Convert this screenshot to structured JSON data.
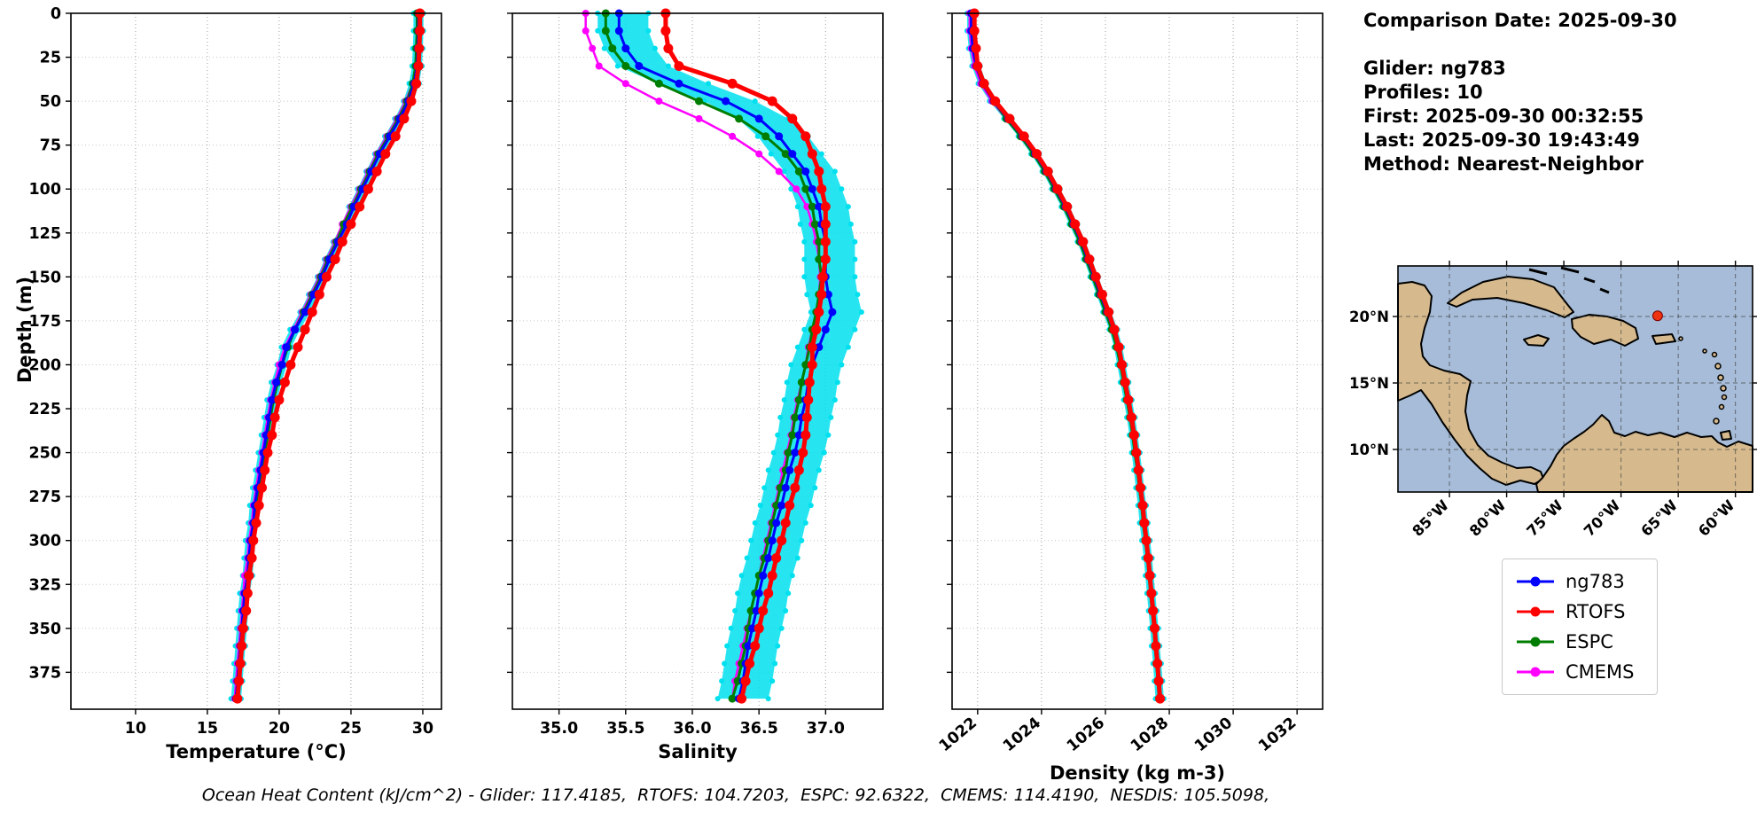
{
  "info": {
    "title": "Comparison Date: 2025-09-30",
    "lines": [
      "Glider: ng783",
      "Profiles: 10",
      "First: 2025-09-30 00:32:55",
      "Last: 2025-09-30 19:43:49",
      "Method: Nearest-Neighbor"
    ]
  },
  "legend": {
    "items": [
      {
        "label": "ng783",
        "color": "#0000ff"
      },
      {
        "label": "RTOFS",
        "color": "#ff0000"
      },
      {
        "label": "ESPC",
        "color": "#007d00"
      },
      {
        "label": "CMEMS",
        "color": "#ff00ff"
      }
    ]
  },
  "footer": {
    "text": "Ocean Heat Content (kJ/cm^2) - Glider: 117.4185,  RTOFS: 104.7203,  ESPC: 92.6322,  CMEMS: 114.4190,  NESDIS: 105.5098,"
  },
  "map": {
    "extent": {
      "lon_min": -89.5,
      "lon_max": -58.5,
      "lat_min": 6.8,
      "lat_max": 23.8
    },
    "lat_ticks": [
      {
        "label": "20°N",
        "value": 20
      },
      {
        "label": "15°N",
        "value": 15
      },
      {
        "label": "10°N",
        "value": 10
      }
    ],
    "lon_ticks": [
      {
        "label": "85°W",
        "value": -85
      },
      {
        "label": "80°W",
        "value": -80
      },
      {
        "label": "75°W",
        "value": -75
      },
      {
        "label": "70°W",
        "value": -70
      },
      {
        "label": "65°W",
        "value": -65
      },
      {
        "label": "60°W",
        "value": -60
      }
    ],
    "glider_dot": {
      "lon": -66.8,
      "lat": 20.05,
      "color": "#ee3311"
    },
    "ocean_color": "#a6bcd8",
    "land_color": "#d6ba8e"
  },
  "chart_data": [
    {
      "type": "line",
      "xlabel": "Temperature (°C)",
      "ylabel": "Depth (m)",
      "xlim": [
        5.5,
        31.3
      ],
      "ylim": [
        0,
        396
      ],
      "xticks": [
        10,
        15,
        20,
        25,
        30
      ],
      "xtick_labels": [
        "10",
        "15",
        "20",
        "25",
        "30"
      ],
      "yticks": [
        0,
        25,
        50,
        75,
        100,
        125,
        150,
        175,
        200,
        225,
        250,
        275,
        300,
        325,
        350,
        375
      ],
      "rotate_xticks": false,
      "show_ytick_labels": true,
      "grid": "dotted",
      "depths": [
        0,
        10,
        20,
        30,
        40,
        50,
        60,
        70,
        80,
        90,
        100,
        110,
        120,
        130,
        140,
        150,
        160,
        170,
        180,
        190,
        200,
        210,
        220,
        230,
        240,
        250,
        260,
        270,
        280,
        290,
        300,
        310,
        320,
        330,
        340,
        350,
        360,
        370,
        380,
        390
      ],
      "band": {
        "name": "glider-raw-envelope",
        "reference": "ng783",
        "color": "#00e0ee",
        "below": 0.35,
        "above": 0.35
      },
      "draw_order": [
        "CMEMS",
        "ESPC",
        "ng783",
        "RTOFS"
      ],
      "series": [
        {
          "name": "ng783",
          "color": "#0000ff",
          "line_width": 3,
          "marker_radius": 4.5,
          "values": [
            29.7,
            29.7,
            29.65,
            29.6,
            29.4,
            29.0,
            28.4,
            27.7,
            27.0,
            26.4,
            25.8,
            25.2,
            24.7,
            24.1,
            23.5,
            23.0,
            22.4,
            21.8,
            21.1,
            20.5,
            20.2,
            19.8,
            19.5,
            19.3,
            19.1,
            18.9,
            18.7,
            18.5,
            18.3,
            18.2,
            18.0,
            17.9,
            17.8,
            17.6,
            17.5,
            17.4,
            17.3,
            17.2,
            17.1,
            17.0
          ]
        },
        {
          "name": "RTOFS",
          "color": "#ff0000",
          "line_width": 5,
          "marker_radius": 5.5,
          "values": [
            29.8,
            29.8,
            29.75,
            29.7,
            29.55,
            29.2,
            28.7,
            28.1,
            27.4,
            26.8,
            26.2,
            25.6,
            25.0,
            24.4,
            23.9,
            23.3,
            22.8,
            22.3,
            21.8,
            21.3,
            20.8,
            20.4,
            20.0,
            19.7,
            19.5,
            19.2,
            19.0,
            18.8,
            18.6,
            18.4,
            18.2,
            18.1,
            17.9,
            17.8,
            17.7,
            17.5,
            17.4,
            17.3,
            17.2,
            17.1
          ]
        },
        {
          "name": "ESPC",
          "color": "#007d00",
          "line_width": 3,
          "marker_radius": 4.5,
          "values": [
            29.6,
            29.6,
            29.55,
            29.5,
            29.3,
            28.9,
            28.3,
            27.6,
            26.9,
            26.3,
            25.7,
            25.1,
            24.5,
            24.0,
            23.4,
            22.9,
            22.3,
            21.7,
            21.1,
            20.6,
            20.2,
            19.9,
            19.6,
            19.4,
            19.2,
            19.0,
            18.8,
            18.6,
            18.4,
            18.2,
            18.1,
            17.9,
            17.8,
            17.7,
            17.5,
            17.4,
            17.3,
            17.2,
            17.1,
            17.0
          ]
        },
        {
          "name": "CMEMS",
          "color": "#ff00ff",
          "line_width": 2.5,
          "marker_radius": 4,
          "values": [
            29.7,
            29.7,
            29.6,
            29.5,
            29.3,
            28.8,
            28.2,
            27.5,
            26.8,
            26.2,
            25.6,
            25.0,
            24.4,
            23.9,
            23.3,
            22.8,
            22.2,
            21.6,
            21.0,
            20.4,
            20.0,
            19.7,
            19.4,
            19.2,
            19.0,
            18.8,
            18.6,
            18.4,
            18.2,
            18.1,
            17.9,
            17.8,
            17.6,
            17.5,
            17.4,
            17.3,
            17.2,
            17.1,
            17.0,
            16.9
          ]
        }
      ]
    },
    {
      "type": "line",
      "xlabel": "Salinity",
      "ylabel": "Depth (m)",
      "xlim": [
        34.65,
        37.43
      ],
      "ylim": [
        0,
        396
      ],
      "xticks": [
        35.0,
        35.5,
        36.0,
        36.5,
        37.0
      ],
      "xtick_labels": [
        "35.0",
        "35.5",
        "36.0",
        "36.5",
        "37.0"
      ],
      "yticks": [
        0,
        25,
        50,
        75,
        100,
        125,
        150,
        175,
        200,
        225,
        250,
        275,
        300,
        325,
        350,
        375
      ],
      "rotate_xticks": false,
      "show_ytick_labels": false,
      "grid": "dotted",
      "depths": [
        0,
        10,
        20,
        30,
        40,
        50,
        60,
        70,
        80,
        90,
        100,
        110,
        120,
        130,
        140,
        150,
        160,
        170,
        180,
        190,
        200,
        210,
        220,
        230,
        240,
        250,
        260,
        270,
        280,
        290,
        300,
        310,
        320,
        330,
        340,
        350,
        360,
        370,
        380,
        390
      ],
      "band": {
        "name": "glider-raw-envelope",
        "reference": "ng783",
        "color": "#00e0ee",
        "below": 0.16,
        "above": 0.22
      },
      "draw_order": [
        "CMEMS",
        "ESPC",
        "ng783",
        "RTOFS"
      ],
      "series": [
        {
          "name": "ng783",
          "color": "#0000ff",
          "line_width": 3,
          "marker_radius": 4.5,
          "values": [
            35.45,
            35.45,
            35.5,
            35.6,
            35.9,
            36.25,
            36.5,
            36.65,
            36.75,
            36.85,
            36.9,
            36.95,
            36.97,
            37.0,
            37.0,
            37.0,
            37.02,
            37.05,
            37.0,
            36.95,
            36.9,
            36.87,
            36.85,
            36.82,
            36.8,
            36.77,
            36.73,
            36.7,
            36.67,
            36.63,
            36.6,
            36.57,
            36.53,
            36.5,
            36.48,
            36.45,
            36.42,
            36.4,
            36.38,
            36.35
          ]
        },
        {
          "name": "RTOFS",
          "color": "#ff0000",
          "line_width": 5,
          "marker_radius": 5.5,
          "values": [
            35.8,
            35.8,
            35.82,
            35.9,
            36.3,
            36.6,
            36.75,
            36.85,
            36.9,
            36.95,
            36.97,
            37.0,
            37.0,
            37.0,
            37.0,
            36.98,
            36.97,
            36.95,
            36.93,
            36.9,
            36.9,
            36.88,
            36.87,
            36.86,
            36.85,
            36.83,
            36.8,
            36.77,
            36.73,
            36.7,
            36.67,
            36.63,
            36.6,
            36.57,
            36.53,
            36.5,
            36.47,
            36.43,
            36.4,
            36.37
          ]
        },
        {
          "name": "ESPC",
          "color": "#007d00",
          "line_width": 3,
          "marker_radius": 4.5,
          "values": [
            35.35,
            35.35,
            35.4,
            35.5,
            35.75,
            36.05,
            36.35,
            36.55,
            36.7,
            36.8,
            36.85,
            36.9,
            36.92,
            36.95,
            36.95,
            36.97,
            36.95,
            36.93,
            36.9,
            36.88,
            36.85,
            36.82,
            36.8,
            36.77,
            36.75,
            36.72,
            36.7,
            36.66,
            36.63,
            36.6,
            36.57,
            36.54,
            36.5,
            36.47,
            36.44,
            36.42,
            36.4,
            36.37,
            36.34,
            36.3
          ]
        },
        {
          "name": "CMEMS",
          "color": "#ff00ff",
          "line_width": 2.5,
          "marker_radius": 4,
          "values": [
            35.2,
            35.2,
            35.25,
            35.3,
            35.5,
            35.75,
            36.05,
            36.3,
            36.5,
            36.65,
            36.78,
            36.86,
            36.9,
            36.93,
            36.95,
            36.96,
            36.95,
            36.93,
            36.9,
            36.87,
            36.85,
            36.82,
            36.79,
            36.76,
            36.74,
            36.71,
            36.68,
            36.65,
            36.62,
            36.59,
            36.56,
            36.53,
            36.5,
            36.47,
            36.44,
            36.41,
            36.38,
            36.35,
            36.32,
            36.3
          ]
        }
      ]
    },
    {
      "type": "line",
      "xlabel": "Density (kg m-3)",
      "ylabel": "Depth (m)",
      "xlim": [
        1021.2,
        1032.8
      ],
      "ylim": [
        0,
        396
      ],
      "xticks": [
        1022,
        1024,
        1026,
        1028,
        1030,
        1032
      ],
      "xtick_labels": [
        "1022",
        "1024",
        "1026",
        "1028",
        "1030",
        "1032"
      ],
      "yticks": [
        0,
        25,
        50,
        75,
        100,
        125,
        150,
        175,
        200,
        225,
        250,
        275,
        300,
        325,
        350,
        375
      ],
      "rotate_xticks": true,
      "show_ytick_labels": false,
      "grid": "dotted",
      "depths": [
        0,
        10,
        20,
        30,
        40,
        50,
        60,
        70,
        80,
        90,
        100,
        110,
        120,
        130,
        140,
        150,
        160,
        170,
        180,
        190,
        200,
        210,
        220,
        230,
        240,
        250,
        260,
        270,
        280,
        290,
        300,
        310,
        320,
        330,
        340,
        350,
        360,
        370,
        380,
        390
      ],
      "band": {
        "name": "glider-raw-envelope",
        "reference": "ng783",
        "color": "#00e0ee",
        "below": 0.13,
        "above": 0.13
      },
      "draw_order": [
        "CMEMS",
        "ESPC",
        "ng783",
        "RTOFS"
      ],
      "series": [
        {
          "name": "ng783",
          "color": "#0000ff",
          "line_width": 3,
          "marker_radius": 4.5,
          "values": [
            1021.8,
            1021.8,
            1021.85,
            1021.95,
            1022.15,
            1022.5,
            1022.95,
            1023.4,
            1023.8,
            1024.15,
            1024.45,
            1024.75,
            1025.0,
            1025.25,
            1025.45,
            1025.65,
            1025.85,
            1026.05,
            1026.25,
            1026.4,
            1026.5,
            1026.6,
            1026.7,
            1026.8,
            1026.88,
            1026.95,
            1027.02,
            1027.08,
            1027.15,
            1027.2,
            1027.27,
            1027.33,
            1027.38,
            1027.43,
            1027.48,
            1027.53,
            1027.57,
            1027.62,
            1027.66,
            1027.7
          ]
        },
        {
          "name": "RTOFS",
          "color": "#ff0000",
          "line_width": 5,
          "marker_radius": 5.5,
          "values": [
            1021.9,
            1021.9,
            1021.95,
            1022.0,
            1022.2,
            1022.55,
            1023.0,
            1023.45,
            1023.85,
            1024.2,
            1024.5,
            1024.8,
            1025.05,
            1025.3,
            1025.5,
            1025.7,
            1025.9,
            1026.1,
            1026.28,
            1026.42,
            1026.52,
            1026.62,
            1026.72,
            1026.82,
            1026.9,
            1026.97,
            1027.04,
            1027.1,
            1027.17,
            1027.22,
            1027.28,
            1027.34,
            1027.39,
            1027.44,
            1027.49,
            1027.54,
            1027.58,
            1027.63,
            1027.67,
            1027.71
          ]
        },
        {
          "name": "ESPC",
          "color": "#007d00",
          "line_width": 3,
          "marker_radius": 4.5,
          "values": [
            1021.85,
            1021.85,
            1021.9,
            1022.0,
            1022.2,
            1022.5,
            1022.9,
            1023.35,
            1023.75,
            1024.1,
            1024.4,
            1024.7,
            1024.95,
            1025.2,
            1025.4,
            1025.6,
            1025.8,
            1026.0,
            1026.2,
            1026.35,
            1026.47,
            1026.57,
            1026.67,
            1026.77,
            1026.85,
            1026.92,
            1027.0,
            1027.06,
            1027.13,
            1027.18,
            1027.25,
            1027.31,
            1027.36,
            1027.41,
            1027.46,
            1027.51,
            1027.55,
            1027.6,
            1027.64,
            1027.68
          ]
        },
        {
          "name": "CMEMS",
          "color": "#ff00ff",
          "line_width": 2.5,
          "marker_radius": 4,
          "values": [
            1021.75,
            1021.75,
            1021.8,
            1021.9,
            1022.1,
            1022.45,
            1022.9,
            1023.35,
            1023.78,
            1024.12,
            1024.42,
            1024.72,
            1024.97,
            1025.22,
            1025.42,
            1025.62,
            1025.82,
            1026.02,
            1026.22,
            1026.37,
            1026.48,
            1026.58,
            1026.68,
            1026.78,
            1026.86,
            1026.93,
            1027.0,
            1027.07,
            1027.14,
            1027.19,
            1027.26,
            1027.32,
            1027.37,
            1027.42,
            1027.47,
            1027.52,
            1027.56,
            1027.61,
            1027.65,
            1027.69
          ]
        }
      ]
    }
  ]
}
